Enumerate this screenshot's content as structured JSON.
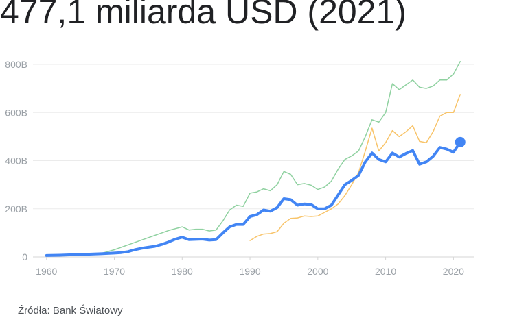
{
  "headline": "477,1 miliarda USD (2021)",
  "source": "Źródła: Bank Światowy",
  "colors": {
    "main": "#4285f4",
    "upper": "#8fd1a0",
    "lower": "#f8c46a",
    "grid": "#ebebeb",
    "axis_text": "#9aa0a6"
  },
  "chart_data": {
    "type": "line",
    "title": "",
    "xlabel": "",
    "ylabel": "",
    "xlim": [
      1958,
      2023
    ],
    "ylim": [
      0,
      800
    ],
    "x_ticks": [
      1960,
      1970,
      1980,
      1990,
      2000,
      2010,
      2020
    ],
    "x_tick_labels": [
      "1960",
      "1970",
      "1980",
      "1990",
      "2000",
      "2010",
      "2020"
    ],
    "y_ticks": [
      0,
      200,
      400,
      600,
      800
    ],
    "y_tick_labels": [
      "0",
      "200B",
      "400B",
      "600B",
      "800B"
    ],
    "grid": true,
    "highlight": {
      "x": 2021,
      "y": 477.1
    },
    "series": [
      {
        "role": "upper",
        "color": "#8fd1a0",
        "x": [
          1960,
          1962,
          1964,
          1966,
          1968,
          1970,
          1972,
          1974,
          1976,
          1978,
          1980,
          1981,
          1982,
          1983,
          1984,
          1985,
          1986,
          1987,
          1988,
          1989,
          1990,
          1991,
          1992,
          1993,
          1994,
          1995,
          1996,
          1997,
          1998,
          1999,
          2000,
          2001,
          2002,
          2003,
          2004,
          2005,
          2006,
          2007,
          2008,
          2009,
          2010,
          2011,
          2012,
          2013,
          2014,
          2015,
          2016,
          2017,
          2018,
          2019,
          2020,
          2021
        ],
        "y": [
          6,
          8,
          10,
          12,
          14,
          30,
          50,
          70,
          90,
          110,
          125,
          112,
          115,
          115,
          108,
          112,
          150,
          195,
          215,
          210,
          265,
          270,
          283,
          275,
          300,
          355,
          343,
          300,
          305,
          298,
          280,
          290,
          315,
          365,
          405,
          420,
          440,
          500,
          570,
          560,
          600,
          720,
          695,
          715,
          735,
          705,
          700,
          710,
          735,
          735,
          760,
          812
        ]
      },
      {
        "role": "lower",
        "color": "#f8c46a",
        "x": [
          1990,
          1991,
          1992,
          1993,
          1994,
          1995,
          1996,
          1997,
          1998,
          1999,
          2000,
          2001,
          2002,
          2003,
          2004,
          2005,
          2006,
          2007,
          2008,
          2009,
          2010,
          2011,
          2012,
          2013,
          2014,
          2015,
          2016,
          2017,
          2018,
          2019,
          2020,
          2021
        ],
        "y": [
          68,
          85,
          95,
          97,
          105,
          140,
          160,
          162,
          170,
          168,
          170,
          185,
          200,
          220,
          255,
          300,
          350,
          440,
          535,
          440,
          475,
          525,
          500,
          520,
          545,
          480,
          475,
          520,
          585,
          600,
          600,
          675
        ]
      },
      {
        "role": "main",
        "color": "#4285f4",
        "x": [
          1960,
          1962,
          1964,
          1966,
          1968,
          1970,
          1971,
          1972,
          1973,
          1974,
          1975,
          1976,
          1977,
          1978,
          1979,
          1980,
          1981,
          1982,
          1983,
          1984,
          1985,
          1986,
          1987,
          1988,
          1989,
          1990,
          1991,
          1992,
          1993,
          1994,
          1995,
          1996,
          1997,
          1998,
          1999,
          2000,
          2001,
          2002,
          2003,
          2004,
          2005,
          2006,
          2007,
          2008,
          2009,
          2010,
          2011,
          2012,
          2013,
          2014,
          2015,
          2016,
          2017,
          2018,
          2019,
          2020,
          2021
        ],
        "y": [
          6,
          7,
          9,
          11,
          13,
          16,
          18,
          22,
          30,
          36,
          40,
          44,
          52,
          62,
          74,
          82,
          72,
          73,
          74,
          70,
          72,
          100,
          125,
          135,
          135,
          168,
          175,
          195,
          190,
          205,
          242,
          238,
          215,
          220,
          218,
          200,
          200,
          215,
          258,
          300,
          318,
          338,
          395,
          432,
          405,
          395,
          432,
          415,
          430,
          442,
          385,
          395,
          418,
          455,
          448,
          435,
          477.1
        ]
      }
    ]
  }
}
